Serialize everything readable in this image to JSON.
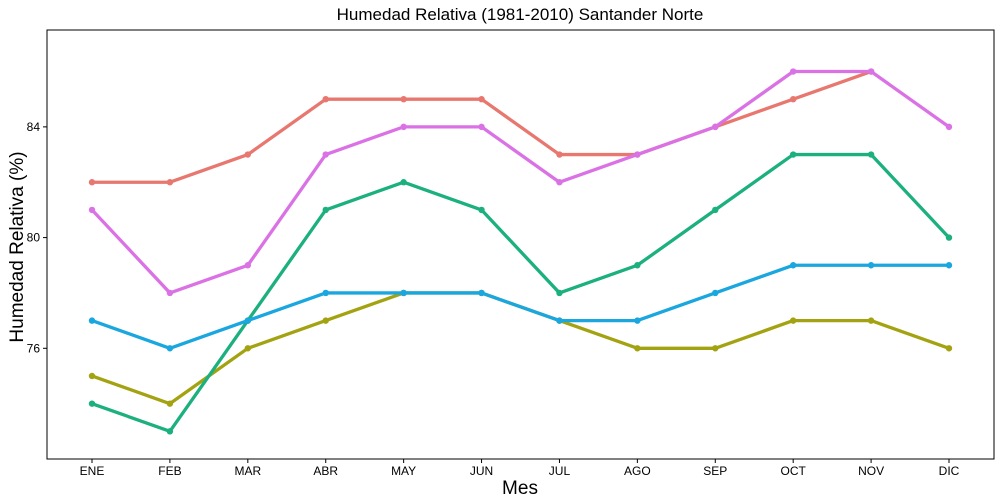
{
  "chart_data": {
    "type": "line",
    "title": "Humedad Relativa (1981-2010)  Santander Norte",
    "xlabel": "Mes",
    "ylabel": "Humedad Relativa   (%)",
    "categories": [
      "ENE",
      "FEB",
      "MAR",
      "ABR",
      "MAY",
      "JUN",
      "JUL",
      "AGO",
      "SEP",
      "OCT",
      "NOV",
      "DIC"
    ],
    "ylim": [
      72,
      87.5
    ],
    "yticks": [
      76,
      80,
      84
    ],
    "grid": false,
    "legend": "none",
    "series": [
      {
        "color": "#E8776F",
        "values": [
          82,
          82,
          83,
          85,
          85,
          85,
          83,
          83,
          84,
          85,
          86,
          null
        ]
      },
      {
        "color": "#A3A312",
        "values": [
          75,
          74,
          76,
          77,
          78,
          78,
          77,
          76,
          76,
          77,
          77,
          76
        ]
      },
      {
        "color": "#1BB07E",
        "values": [
          74,
          73,
          77,
          81,
          82,
          81,
          78,
          79,
          81,
          83,
          83,
          80
        ]
      },
      {
        "color": "#1AA6DF",
        "values": [
          77,
          76,
          77,
          78,
          78,
          78,
          77,
          77,
          78,
          79,
          79,
          79
        ]
      },
      {
        "color": "#DA72E6",
        "values": [
          81,
          78,
          79,
          83,
          84,
          84,
          82,
          83,
          84,
          86,
          86,
          84
        ]
      }
    ]
  }
}
